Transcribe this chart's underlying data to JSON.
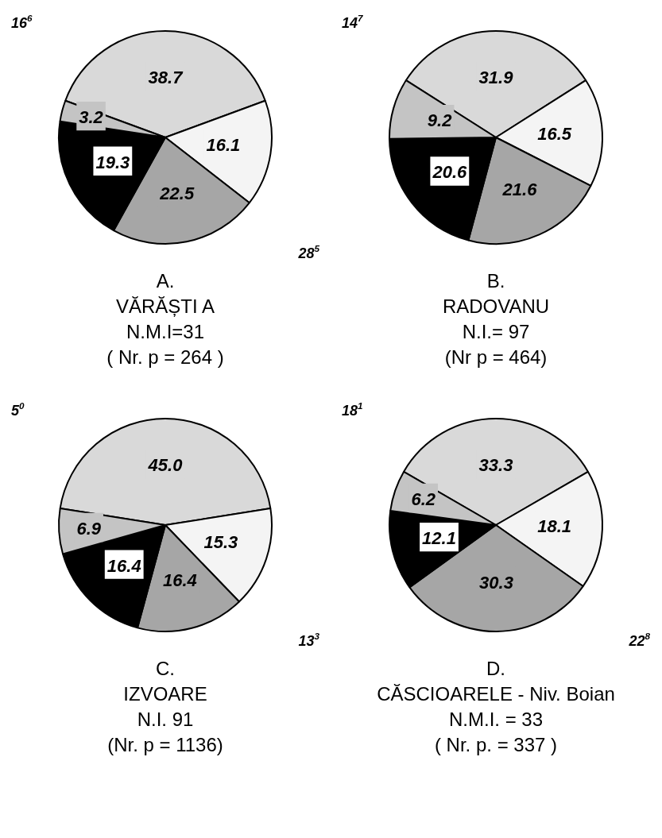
{
  "chart_data": [
    {
      "type": "pie",
      "title": "A.",
      "subtitle": "VĂRĂȘTI A",
      "categories": [
        null,
        null,
        null,
        null,
        null
      ],
      "values": [
        38.7,
        16.1,
        22.5,
        19.3,
        3.2
      ],
      "colors": [
        "#d9d9d9",
        "#f4f4f4",
        "#a6a6a6",
        "#000000",
        "#c4c4c4"
      ],
      "value_labels": [
        "38.7",
        "16.1",
        "22.5",
        "19.3",
        "3.2"
      ],
      "annotations": [
        "N.M.I=31",
        "( Nr. p = 264 )",
        "16$^{6}$",
        "28$^{5}$"
      ]
    },
    {
      "type": "pie",
      "title": "B.",
      "subtitle": "RADOVANU",
      "categories": [
        null,
        null,
        null,
        null,
        null
      ],
      "values": [
        31.9,
        16.5,
        21.6,
        20.6,
        9.2
      ],
      "colors": [
        "#d9d9d9",
        "#f4f4f4",
        "#a6a6a6",
        "#000000",
        "#c4c4c4"
      ],
      "value_labels": [
        "31.9",
        "16.5",
        "21.6",
        "20.6",
        "9.2"
      ],
      "annotations": [
        "N.I.= 97",
        "(Nr p = 464)",
        "14$^{7}$"
      ]
    },
    {
      "type": "pie",
      "title": "C.",
      "subtitle": "IZVOARE",
      "categories": [
        null,
        null,
        null,
        null,
        null
      ],
      "values": [
        45.0,
        15.3,
        16.4,
        16.4,
        6.9
      ],
      "colors": [
        "#d9d9d9",
        "#f4f4f4",
        "#a6a6a6",
        "#000000",
        "#c4c4c4"
      ],
      "value_labels": [
        "45.0",
        "15.3",
        "16.4",
        "16.4",
        "6.9"
      ],
      "annotations": [
        "N.I. 91",
        "(Nr. p = 1136)",
        "5$^{0}$",
        "13$^{3}$"
      ]
    },
    {
      "type": "pie",
      "title": "D.",
      "subtitle": "CĂSCIOARELE - Niv. Boian",
      "categories": [
        null,
        null,
        null,
        null,
        null
      ],
      "values": [
        33.3,
        18.1,
        30.3,
        12.1,
        6.2
      ],
      "colors": [
        "#d9d9d9",
        "#f4f4f4",
        "#a6a6a6",
        "#000000",
        "#c4c4c4"
      ],
      "value_labels": [
        "33.3",
        "18.1",
        "30.3",
        "12.1",
        "6.2"
      ],
      "annotations": [
        "N.M.I. = 33",
        "( Nr. p. = 337 )",
        "18$^{1}$",
        "22$^{8}$"
      ]
    }
  ]
}
